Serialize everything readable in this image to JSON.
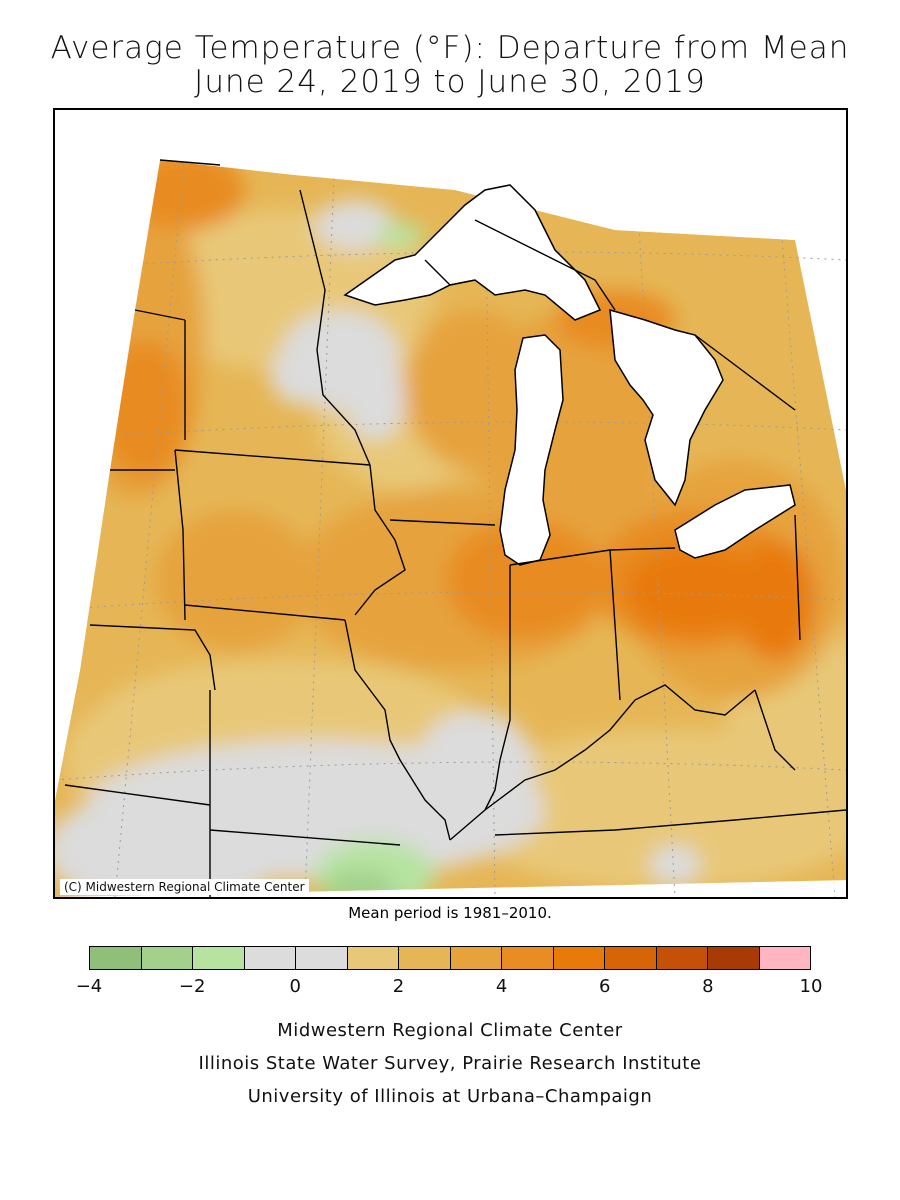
{
  "title_line1": "Average Temperature (°F): Departure from Mean",
  "title_line2": "June 24, 2019 to June 30, 2019",
  "copyright": "(C) Midwestern Regional Climate Center",
  "mean_period": "Mean period is 1981–2010.",
  "legend": {
    "unit": "°F departure",
    "bins": [
      {
        "min": -4,
        "max": -3,
        "color": "#8fbf78"
      },
      {
        "min": -3,
        "max": -2,
        "color": "#a3d18c"
      },
      {
        "min": -2,
        "max": -1,
        "color": "#b6e3a0"
      },
      {
        "min": -1,
        "max": 0,
        "color": "#dcdcdc"
      },
      {
        "min": 0,
        "max": 1,
        "color": "#dcdcdc"
      },
      {
        "min": 1,
        "max": 2,
        "color": "#e8c878"
      },
      {
        "min": 2,
        "max": 3,
        "color": "#e6b656"
      },
      {
        "min": 3,
        "max": 4,
        "color": "#e6a33c"
      },
      {
        "min": 4,
        "max": 5,
        "color": "#e88c24"
      },
      {
        "min": 5,
        "max": 6,
        "color": "#e87a0a"
      },
      {
        "min": 6,
        "max": 7,
        "color": "#d86408"
      },
      {
        "min": 7,
        "max": 8,
        "color": "#c55008"
      },
      {
        "min": 8,
        "max": 9,
        "color": "#a83a06"
      },
      {
        "min": 9,
        "max": 10,
        "color": "#ffb6c1"
      }
    ],
    "tick_labels": [
      "−4",
      "−2",
      "0",
      "2",
      "4",
      "6",
      "8",
      "10"
    ]
  },
  "credits": [
    "Midwestern Regional Climate Center",
    "Illinois State Water Survey, Prairie Research Institute",
    "University of Illinois at Urbana–Champaign"
  ]
}
